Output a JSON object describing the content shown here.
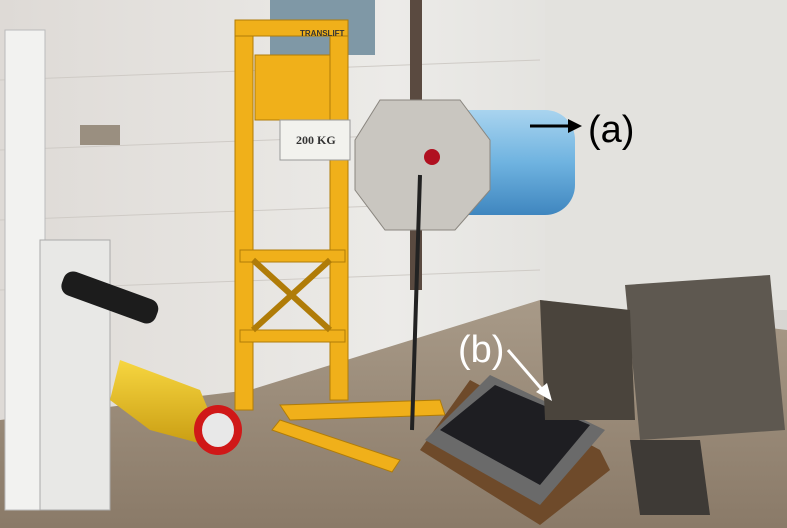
{
  "annotations": [
    {
      "label": "(a)"
    },
    {
      "label": "(b)"
    }
  ],
  "scene_text": [
    "TRANSLIFT",
    "200 KG"
  ]
}
